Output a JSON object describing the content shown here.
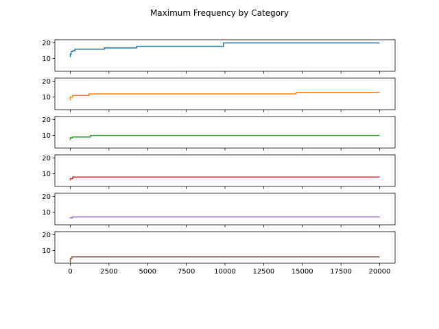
{
  "chart_data": {
    "type": "line",
    "title": "Maximum Frequency by Category",
    "xlabel": "",
    "ylabel": "",
    "xlim": [
      -1000,
      21000
    ],
    "ylim": [
      2,
      22
    ],
    "x_ticks": [
      0,
      2500,
      5000,
      7500,
      10000,
      12500,
      15000,
      17500,
      20000
    ],
    "y_ticks": [
      10,
      20
    ],
    "grid": false,
    "legend": "none",
    "sharex": true,
    "series": [
      {
        "color": "#1f77b4",
        "x": [
          0,
          0,
          50,
          50,
          150,
          150,
          300,
          300,
          2200,
          2200,
          4300,
          4300,
          9900,
          9900,
          20000
        ],
        "y": [
          11,
          13,
          13,
          14.5,
          14.5,
          15,
          15,
          16,
          16,
          16.8,
          16.8,
          17.8,
          17.8,
          20,
          20
        ]
      },
      {
        "color": "#ff7f0e",
        "x": [
          0,
          0,
          150,
          150,
          1200,
          1200,
          14600,
          14600,
          20000
        ],
        "y": [
          8,
          10,
          10,
          11,
          11,
          12,
          12,
          13,
          13
        ]
      },
      {
        "color": "#2ca02c",
        "x": [
          0,
          0,
          150,
          150,
          1300,
          1300,
          20000
        ],
        "y": [
          7,
          8.5,
          8.5,
          9,
          9,
          10,
          10
        ]
      },
      {
        "color": "#d62728",
        "x": [
          0,
          0,
          150,
          150,
          20000
        ],
        "y": [
          6,
          7,
          7,
          8,
          8
        ]
      },
      {
        "color": "#9467bd",
        "x": [
          0,
          0,
          150,
          150,
          20000
        ],
        "y": [
          6,
          6.5,
          6.5,
          7,
          7
        ]
      },
      {
        "color": "#8c564b",
        "x": [
          0,
          0,
          100,
          100,
          20000
        ],
        "y": [
          2.5,
          5,
          5,
          6,
          6
        ]
      }
    ]
  }
}
